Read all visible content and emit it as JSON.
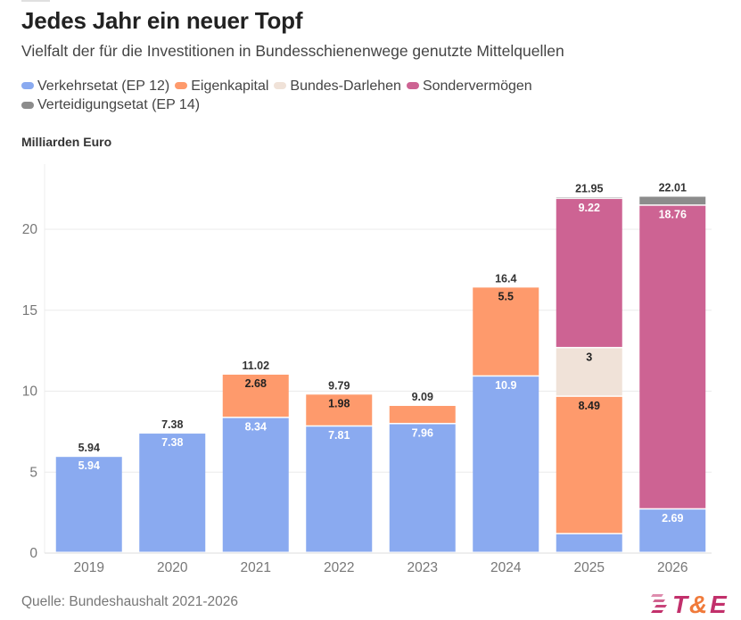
{
  "title": "Jedes Jahr ein neuer Topf",
  "subtitle": "Vielfalt der für die Investitionen in Bundesschienenwege genutzte Mittelquellen",
  "unit_label": "Milliarden Euro",
  "source": "Quelle: Bundeshaushalt 2021-2026",
  "logo": {
    "text_t": "T",
    "text_amp": "&",
    "text_e": "E",
    "brand_color": "#c2306b",
    "amp_color": "#f07a3a"
  },
  "chart_data": {
    "type": "bar",
    "stacked": true,
    "title": "Jedes Jahr ein neuer Topf",
    "subtitle": "Vielfalt der für die Investitionen in Bundesschienenwege genutzte Mittelquellen",
    "xlabel": "",
    "ylabel": "Milliarden Euro",
    "ylim": [
      0,
      22.5
    ],
    "yticks": [
      0,
      5,
      10,
      15,
      20
    ],
    "grid": true,
    "legend_position": "top-left",
    "categories": [
      "2019",
      "2020",
      "2021",
      "2022",
      "2023",
      "2024",
      "2025",
      "2026"
    ],
    "series": [
      {
        "name": "Verkehrsetat (EP 12)",
        "color": "#8aaaf0",
        "label_color": "#ffffff",
        "values": [
          5.94,
          7.38,
          8.34,
          7.81,
          7.96,
          10.9,
          1.16,
          2.69
        ],
        "labels": [
          "5.94",
          "7.38",
          "8.34",
          "7.81",
          "7.96",
          "10.9",
          "",
          "2.69"
        ]
      },
      {
        "name": "Eigenkapital",
        "color": "#fe9a6c",
        "label_color": "#222222",
        "values": [
          0,
          0,
          2.68,
          1.98,
          1.13,
          5.5,
          8.49,
          0
        ],
        "labels": [
          "",
          "",
          "2.68",
          "1.98",
          "",
          "5.5",
          "8.49",
          ""
        ]
      },
      {
        "name": "Bundes-Darlehen",
        "color": "#f0e2d8",
        "label_color": "#222222",
        "values": [
          0,
          0,
          0,
          0,
          0,
          0,
          3,
          0
        ],
        "labels": [
          "",
          "",
          "",
          "",
          "",
          "",
          "3",
          ""
        ]
      },
      {
        "name": "Sondervermögen",
        "color": "#cd6393",
        "label_color": "#ffffff",
        "values": [
          0,
          0,
          0,
          0,
          0,
          0,
          9.22,
          18.76
        ],
        "labels": [
          "",
          "",
          "",
          "",
          "",
          "",
          "9.22",
          "18.76"
        ]
      },
      {
        "name": "Verteidigungsetat (EP 14)",
        "color": "#8c8c8c",
        "label_color": "#ffffff",
        "values": [
          0,
          0,
          0,
          0,
          0,
          0,
          0.08,
          0.56
        ],
        "labels": [
          "",
          "",
          "",
          "",
          "",
          "",
          "",
          ""
        ]
      }
    ],
    "totals": [
      5.94,
      7.38,
      11.02,
      9.79,
      9.09,
      16.4,
      21.95,
      22.01
    ],
    "total_labels": [
      "5.94",
      "7.38",
      "11.02",
      "9.79",
      "9.09",
      "16.4",
      "21.95",
      "22.01"
    ]
  }
}
